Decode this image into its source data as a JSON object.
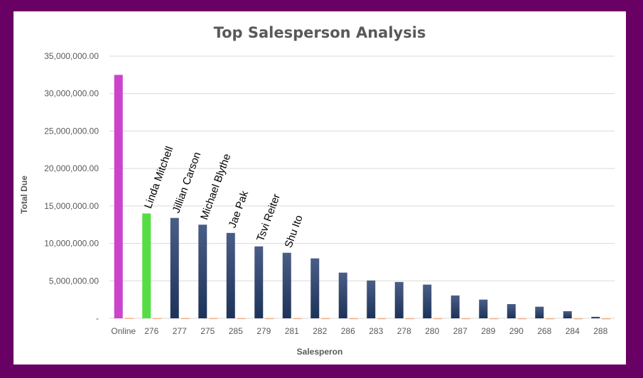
{
  "chart_data": {
    "type": "bar",
    "title": "Top Salesperson Analysis",
    "xlabel": "Salesperon",
    "ylabel": "Total Due",
    "ylim": [
      0,
      35000000
    ],
    "yticks": [
      "-",
      "5,000,000.00",
      "10,000,000.00",
      "15,000,000.00",
      "20,000,000.00",
      "25,000,000.00",
      "30,000,000.00",
      "35,000,000.00"
    ],
    "categories": [
      "Online",
      "276",
      "277",
      "275",
      "285",
      "279",
      "281",
      "282",
      "286",
      "283",
      "278",
      "280",
      "287",
      "289",
      "290",
      "268",
      "284",
      "288"
    ],
    "values": [
      32500000,
      14000000,
      13400000,
      12500000,
      11400000,
      9600000,
      8750000,
      8000000,
      6100000,
      5050000,
      4850000,
      4500000,
      3050000,
      2500000,
      1900000,
      1550000,
      950000,
      200000
    ],
    "secondary_values": [
      60000,
      40000,
      38000,
      36000,
      34000,
      30000,
      28000,
      26000,
      22000,
      20000,
      19000,
      18000,
      15000,
      14000,
      12000,
      10000,
      8000,
      5000
    ],
    "highlight_colors": {
      "Online": "#cc44cc",
      "276": "#55dd44"
    },
    "bar_color_top": "#4a5d86",
    "bar_color_bottom": "#1e3359",
    "secondary_color": "#f4b183",
    "grid": true,
    "annotations": [
      {
        "category": "276",
        "text": "Linda Mitchell"
      },
      {
        "category": "277",
        "text": "Jillian Carson"
      },
      {
        "category": "275",
        "text": "Michael Blythe"
      },
      {
        "category": "285",
        "text": "Jae Pak"
      },
      {
        "category": "279",
        "text": "Tsvi Reiter"
      },
      {
        "category": "281",
        "text": "Shu Ito"
      }
    ]
  }
}
